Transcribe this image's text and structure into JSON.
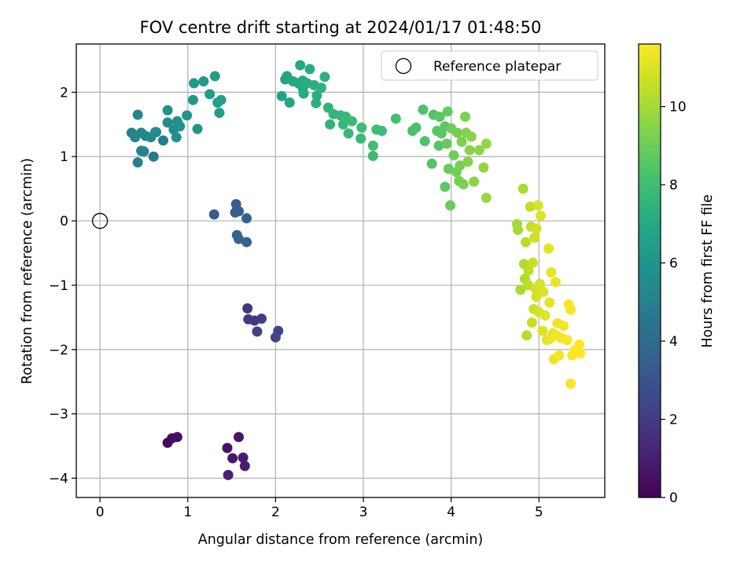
{
  "chart_data": {
    "type": "scatter",
    "title": "FOV centre drift starting at 2024/01/17 01:48:50",
    "xlabel": "Angular distance from reference (arcmin)",
    "ylabel": "Rotation from reference (arcmin)",
    "xlim": [
      -0.27,
      5.75
    ],
    "ylim": [
      -4.3,
      2.75
    ],
    "xticks": [
      0,
      1,
      2,
      3,
      4,
      5
    ],
    "yticks": [
      -4,
      -3,
      -2,
      -1,
      0,
      1,
      2
    ],
    "xtick_labels": [
      "0",
      "1",
      "2",
      "3",
      "4",
      "5"
    ],
    "ytick_labels": [
      "−4",
      "−3",
      "−2",
      "−1",
      "0",
      "1",
      "2"
    ],
    "grid": true,
    "legend": {
      "position": "top-right",
      "entries": [
        "Reference platepar"
      ]
    },
    "reference_point": {
      "x": 0,
      "y": 0,
      "label": "Reference platepar"
    },
    "colorbar": {
      "label": "Hours from first FF file",
      "range": [
        0,
        11.6
      ],
      "ticks": [
        0,
        2,
        4,
        6,
        8,
        10
      ],
      "tick_labels": [
        "0",
        "2",
        "4",
        "6",
        "8",
        "10"
      ],
      "colormap": "viridis"
    },
    "points": [
      {
        "x": 0.77,
        "y": -3.45,
        "t": 0.3
      },
      {
        "x": 0.82,
        "y": -3.38,
        "t": 0.4
      },
      {
        "x": 0.88,
        "y": -3.36,
        "t": 0.5
      },
      {
        "x": 1.45,
        "y": -3.53,
        "t": 0.6
      },
      {
        "x": 1.58,
        "y": -3.36,
        "t": 0.7
      },
      {
        "x": 1.51,
        "y": -3.69,
        "t": 0.8
      },
      {
        "x": 1.63,
        "y": -3.68,
        "t": 0.9
      },
      {
        "x": 1.65,
        "y": -3.81,
        "t": 1.0
      },
      {
        "x": 1.46,
        "y": -3.95,
        "t": 1.1
      },
      {
        "x": 1.68,
        "y": -1.36,
        "t": 1.8
      },
      {
        "x": 1.69,
        "y": -1.53,
        "t": 1.9
      },
      {
        "x": 1.76,
        "y": -1.55,
        "t": 2.0
      },
      {
        "x": 1.84,
        "y": -1.52,
        "t": 2.1
      },
      {
        "x": 1.79,
        "y": -1.72,
        "t": 2.2
      },
      {
        "x": 2.03,
        "y": -1.71,
        "t": 2.3
      },
      {
        "x": 2.0,
        "y": -1.81,
        "t": 2.4
      },
      {
        "x": 1.3,
        "y": 0.1,
        "t": 3.3
      },
      {
        "x": 1.55,
        "y": 0.26,
        "t": 3.4
      },
      {
        "x": 1.54,
        "y": 0.13,
        "t": 3.5
      },
      {
        "x": 1.58,
        "y": 0.15,
        "t": 3.5
      },
      {
        "x": 1.67,
        "y": 0.04,
        "t": 3.6
      },
      {
        "x": 1.56,
        "y": -0.22,
        "t": 3.6
      },
      {
        "x": 1.58,
        "y": -0.28,
        "t": 3.7
      },
      {
        "x": 1.67,
        "y": -0.33,
        "t": 3.7
      },
      {
        "x": 0.61,
        "y": 1.0,
        "t": 4.6
      },
      {
        "x": 0.72,
        "y": 1.25,
        "t": 4.8
      },
      {
        "x": 0.64,
        "y": 1.38,
        "t": 4.9
      },
      {
        "x": 0.43,
        "y": 0.91,
        "t": 5.0
      },
      {
        "x": 0.47,
        "y": 1.09,
        "t": 5.0
      },
      {
        "x": 0.5,
        "y": 1.08,
        "t": 5.1
      },
      {
        "x": 0.36,
        "y": 1.37,
        "t": 5.1
      },
      {
        "x": 0.4,
        "y": 1.3,
        "t": 5.2
      },
      {
        "x": 0.47,
        "y": 1.37,
        "t": 5.2
      },
      {
        "x": 0.52,
        "y": 1.32,
        "t": 5.3
      },
      {
        "x": 0.43,
        "y": 1.65,
        "t": 5.3
      },
      {
        "x": 0.58,
        "y": 1.3,
        "t": 5.4
      },
      {
        "x": 0.63,
        "y": 1.38,
        "t": 5.5
      },
      {
        "x": 0.77,
        "y": 1.53,
        "t": 5.6
      },
      {
        "x": 0.84,
        "y": 1.42,
        "t": 5.7
      },
      {
        "x": 0.87,
        "y": 1.3,
        "t": 5.7
      },
      {
        "x": 0.88,
        "y": 1.55,
        "t": 5.8
      },
      {
        "x": 0.91,
        "y": 1.47,
        "t": 5.8
      },
      {
        "x": 0.77,
        "y": 1.72,
        "t": 5.9
      },
      {
        "x": 0.99,
        "y": 1.64,
        "t": 6.0
      },
      {
        "x": 1.11,
        "y": 1.43,
        "t": 6.0
      },
      {
        "x": 1.06,
        "y": 1.88,
        "t": 6.1
      },
      {
        "x": 1.07,
        "y": 2.14,
        "t": 6.2
      },
      {
        "x": 1.18,
        "y": 2.17,
        "t": 6.3
      },
      {
        "x": 1.25,
        "y": 1.97,
        "t": 6.3
      },
      {
        "x": 1.31,
        "y": 2.25,
        "t": 6.4
      },
      {
        "x": 1.34,
        "y": 1.84,
        "t": 6.4
      },
      {
        "x": 1.36,
        "y": 1.68,
        "t": 6.5
      },
      {
        "x": 1.38,
        "y": 1.88,
        "t": 6.5
      },
      {
        "x": 2.07,
        "y": 1.94,
        "t": 6.7
      },
      {
        "x": 2.11,
        "y": 2.2,
        "t": 6.7
      },
      {
        "x": 2.13,
        "y": 2.25,
        "t": 6.8
      },
      {
        "x": 2.16,
        "y": 1.84,
        "t": 6.8
      },
      {
        "x": 2.2,
        "y": 2.17,
        "t": 6.9
      },
      {
        "x": 2.26,
        "y": 2.14,
        "t": 6.9
      },
      {
        "x": 2.28,
        "y": 2.42,
        "t": 7.0
      },
      {
        "x": 2.31,
        "y": 2.18,
        "t": 7.0
      },
      {
        "x": 2.31,
        "y": 2.06,
        "t": 7.1
      },
      {
        "x": 2.32,
        "y": 1.98,
        "t": 7.1
      },
      {
        "x": 2.36,
        "y": 2.14,
        "t": 7.2
      },
      {
        "x": 2.39,
        "y": 2.36,
        "t": 7.2
      },
      {
        "x": 2.44,
        "y": 2.11,
        "t": 7.3
      },
      {
        "x": 2.46,
        "y": 1.83,
        "t": 7.3
      },
      {
        "x": 2.47,
        "y": 1.95,
        "t": 7.3
      },
      {
        "x": 2.52,
        "y": 2.07,
        "t": 7.4
      },
      {
        "x": 2.56,
        "y": 2.24,
        "t": 7.4
      },
      {
        "x": 2.6,
        "y": 1.76,
        "t": 7.5
      },
      {
        "x": 2.62,
        "y": 1.5,
        "t": 7.5
      },
      {
        "x": 2.66,
        "y": 1.66,
        "t": 7.6
      },
      {
        "x": 2.74,
        "y": 1.64,
        "t": 7.6
      },
      {
        "x": 2.77,
        "y": 1.5,
        "t": 7.7
      },
      {
        "x": 2.8,
        "y": 1.62,
        "t": 7.7
      },
      {
        "x": 2.83,
        "y": 1.36,
        "t": 7.7
      },
      {
        "x": 2.87,
        "y": 1.55,
        "t": 7.8
      },
      {
        "x": 2.97,
        "y": 1.28,
        "t": 7.8
      },
      {
        "x": 2.98,
        "y": 1.45,
        "t": 7.9
      },
      {
        "x": 3.11,
        "y": 1.01,
        "t": 7.9
      },
      {
        "x": 3.11,
        "y": 1.17,
        "t": 8.0
      },
      {
        "x": 3.15,
        "y": 1.42,
        "t": 8.0
      },
      {
        "x": 3.21,
        "y": 1.4,
        "t": 8.0
      },
      {
        "x": 3.37,
        "y": 1.59,
        "t": 8.1
      },
      {
        "x": 3.56,
        "y": 1.4,
        "t": 8.2
      },
      {
        "x": 3.6,
        "y": 1.45,
        "t": 8.2
      },
      {
        "x": 3.68,
        "y": 1.73,
        "t": 8.3
      },
      {
        "x": 3.7,
        "y": 1.24,
        "t": 8.3
      },
      {
        "x": 3.78,
        "y": 0.89,
        "t": 8.4
      },
      {
        "x": 3.8,
        "y": 1.65,
        "t": 8.4
      },
      {
        "x": 3.84,
        "y": 1.4,
        "t": 8.5
      },
      {
        "x": 3.86,
        "y": 1.17,
        "t": 8.5
      },
      {
        "x": 3.87,
        "y": 1.62,
        "t": 8.6
      },
      {
        "x": 3.89,
        "y": 1.36,
        "t": 8.6
      },
      {
        "x": 3.93,
        "y": 1.47,
        "t": 8.7
      },
      {
        "x": 3.93,
        "y": 0.53,
        "t": 8.7
      },
      {
        "x": 3.95,
        "y": 1.2,
        "t": 8.8
      },
      {
        "x": 3.96,
        "y": 1.7,
        "t": 8.8
      },
      {
        "x": 3.97,
        "y": 0.81,
        "t": 8.9
      },
      {
        "x": 3.99,
        "y": 0.24,
        "t": 8.9
      },
      {
        "x": 4.0,
        "y": 1.44,
        "t": 9.0
      },
      {
        "x": 4.03,
        "y": 1.02,
        "t": 9.0
      },
      {
        "x": 4.06,
        "y": 0.76,
        "t": 9.1
      },
      {
        "x": 4.07,
        "y": 1.37,
        "t": 9.1
      },
      {
        "x": 4.09,
        "y": 0.62,
        "t": 9.2
      },
      {
        "x": 4.1,
        "y": 0.86,
        "t": 9.2
      },
      {
        "x": 4.12,
        "y": 1.23,
        "t": 9.3
      },
      {
        "x": 4.14,
        "y": 0.57,
        "t": 9.3
      },
      {
        "x": 4.16,
        "y": 1.62,
        "t": 9.3
      },
      {
        "x": 4.17,
        "y": 1.37,
        "t": 9.4
      },
      {
        "x": 4.19,
        "y": 0.92,
        "t": 9.4
      },
      {
        "x": 4.21,
        "y": 1.1,
        "t": 9.5
      },
      {
        "x": 4.23,
        "y": 1.31,
        "t": 9.5
      },
      {
        "x": 4.26,
        "y": 0.61,
        "t": 9.6
      },
      {
        "x": 4.32,
        "y": 1.1,
        "t": 9.6
      },
      {
        "x": 4.37,
        "y": 0.83,
        "t": 9.7
      },
      {
        "x": 4.4,
        "y": 1.2,
        "t": 9.7
      },
      {
        "x": 4.4,
        "y": 0.36,
        "t": 9.8
      },
      {
        "x": 4.75,
        "y": -0.05,
        "t": 10.0
      },
      {
        "x": 4.76,
        "y": -0.14,
        "t": 10.0
      },
      {
        "x": 4.79,
        "y": -1.07,
        "t": 10.1
      },
      {
        "x": 4.82,
        "y": 0.5,
        "t": 10.1
      },
      {
        "x": 4.83,
        "y": -0.67,
        "t": 10.2
      },
      {
        "x": 4.84,
        "y": -0.9,
        "t": 10.2
      },
      {
        "x": 4.85,
        "y": -0.33,
        "t": 10.3
      },
      {
        "x": 4.86,
        "y": -1.78,
        "t": 10.3
      },
      {
        "x": 4.88,
        "y": -0.77,
        "t": 10.4
      },
      {
        "x": 4.88,
        "y": -1.0,
        "t": 10.4
      },
      {
        "x": 4.9,
        "y": 0.22,
        "t": 10.5
      },
      {
        "x": 4.91,
        "y": -0.09,
        "t": 10.5
      },
      {
        "x": 4.92,
        "y": -1.58,
        "t": 10.6
      },
      {
        "x": 4.93,
        "y": -0.65,
        "t": 10.6
      },
      {
        "x": 4.94,
        "y": -1.37,
        "t": 10.7
      },
      {
        "x": 4.95,
        "y": -0.26,
        "t": 10.7
      },
      {
        "x": 4.96,
        "y": -1.05,
        "t": 10.8
      },
      {
        "x": 4.97,
        "y": -1.18,
        "t": 10.8
      },
      {
        "x": 4.97,
        "y": -0.12,
        "t": 10.8
      },
      {
        "x": 4.99,
        "y": 0.24,
        "t": 10.9
      },
      {
        "x": 5.0,
        "y": -1.42,
        "t": 10.9
      },
      {
        "x": 5.01,
        "y": -0.98,
        "t": 10.9
      },
      {
        "x": 5.02,
        "y": 0.08,
        "t": 11.0
      },
      {
        "x": 5.04,
        "y": -1.71,
        "t": 11.0
      },
      {
        "x": 5.05,
        "y": -1.1,
        "t": 11.0
      },
      {
        "x": 5.07,
        "y": -1.47,
        "t": 11.1
      },
      {
        "x": 5.09,
        "y": -1.85,
        "t": 11.1
      },
      {
        "x": 5.11,
        "y": -0.43,
        "t": 11.1
      },
      {
        "x": 5.12,
        "y": -1.27,
        "t": 11.2
      },
      {
        "x": 5.14,
        "y": -0.8,
        "t": 11.2
      },
      {
        "x": 5.16,
        "y": -1.75,
        "t": 11.2
      },
      {
        "x": 5.17,
        "y": -2.15,
        "t": 11.3
      },
      {
        "x": 5.19,
        "y": -0.95,
        "t": 11.3
      },
      {
        "x": 5.21,
        "y": -1.59,
        "t": 11.3
      },
      {
        "x": 5.23,
        "y": -2.09,
        "t": 11.4
      },
      {
        "x": 5.25,
        "y": -1.82,
        "t": 11.4
      },
      {
        "x": 5.28,
        "y": -1.63,
        "t": 11.4
      },
      {
        "x": 5.32,
        "y": -1.85,
        "t": 11.5
      },
      {
        "x": 5.34,
        "y": -1.3,
        "t": 11.5
      },
      {
        "x": 5.36,
        "y": -2.53,
        "t": 11.5
      },
      {
        "x": 5.38,
        "y": -2.09,
        "t": 11.5
      },
      {
        "x": 5.41,
        "y": -2.01,
        "t": 11.6
      },
      {
        "x": 5.46,
        "y": -1.92,
        "t": 11.6
      },
      {
        "x": 5.47,
        "y": -2.06,
        "t": 11.6
      },
      {
        "x": 5.36,
        "y": -1.38,
        "t": 11.5
      },
      {
        "x": 5.13,
        "y": -1.83,
        "t": 11.3
      },
      {
        "x": 5.2,
        "y": -1.78,
        "t": 11.4
      }
    ]
  }
}
